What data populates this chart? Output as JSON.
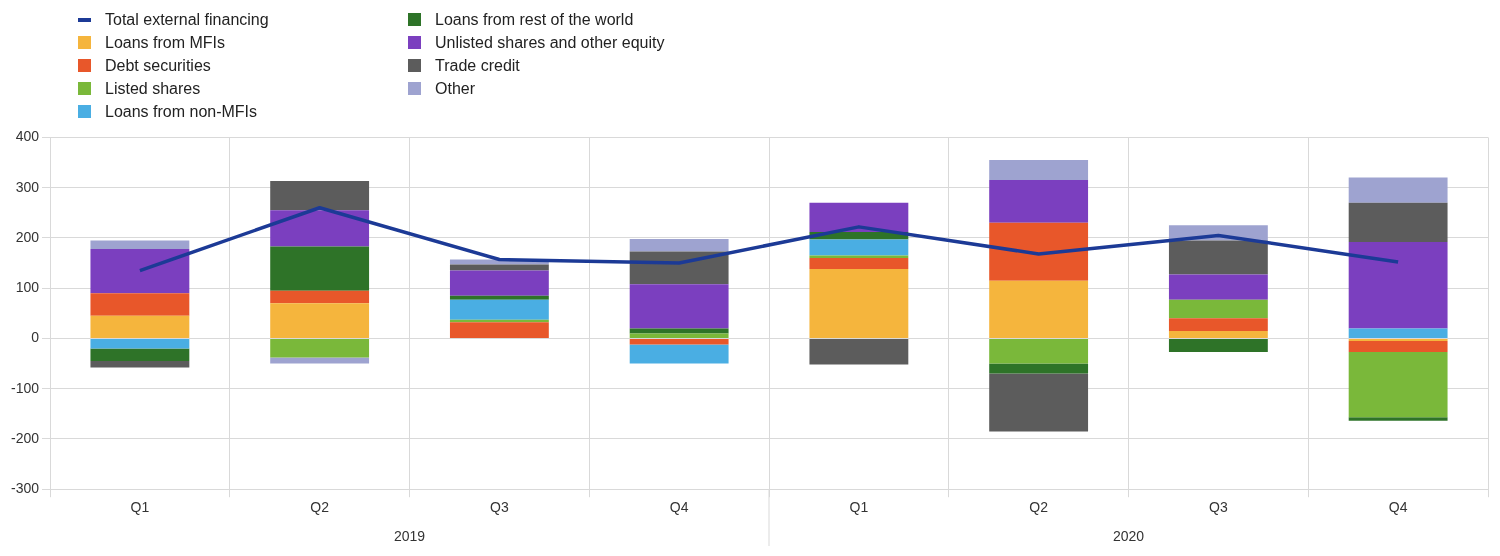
{
  "chart_data": {
    "type": "bar",
    "stacked": true,
    "categories": [
      "Q1",
      "Q2",
      "Q3",
      "Q4",
      "Q1",
      "Q2",
      "Q3",
      "Q4"
    ],
    "series": [
      {
        "name": "Total external financing",
        "type": "line",
        "color": "#1c3a96",
        "values": [
          135,
          260,
          157,
          150,
          222,
          168,
          205,
          152
        ]
      },
      {
        "name": "Loans from MFIs",
        "color": "#f5b53d",
        "values": [
          45,
          70,
          null,
          null,
          138,
          115,
          15,
          -5
        ]
      },
      {
        "name": "Debt securities",
        "color": "#e8572a",
        "values": [
          45,
          25,
          32,
          -12,
          22,
          115,
          25,
          -22
        ]
      },
      {
        "name": "Listed shares",
        "color": "#7ab83a",
        "values": [
          null,
          -38,
          5,
          10,
          5,
          -50,
          37,
          -130
        ]
      },
      {
        "name": "Loans from non-MFIs",
        "color": "#4aaee3",
        "values": [
          -20,
          null,
          40,
          -38,
          32,
          null,
          null,
          20
        ]
      },
      {
        "name": "Loans from rest of the world",
        "color": "#2e7328",
        "values": [
          -25,
          88,
          8,
          10,
          15,
          -20,
          -27,
          -7
        ]
      },
      {
        "name": "Unlisted shares and other equity",
        "color": "#7b3fbf",
        "values": [
          88,
          72,
          50,
          88,
          58,
          85,
          50,
          172
        ]
      },
      {
        "name": "Trade credit",
        "color": "#5c5c5c",
        "values": [
          -13,
          58,
          12,
          65,
          -52,
          -115,
          68,
          78
        ]
      },
      {
        "name": "Other",
        "color": "#9ea3d0",
        "values": [
          17,
          -12,
          10,
          25,
          null,
          40,
          30,
          50
        ]
      }
    ],
    "ylim": [
      -300,
      400
    ],
    "yticks": [
      -300,
      -200,
      -100,
      0,
      100,
      200,
      300,
      400
    ],
    "grid": true,
    "legend": "top left",
    "annotations": [
      "2019",
      "2020"
    ]
  }
}
